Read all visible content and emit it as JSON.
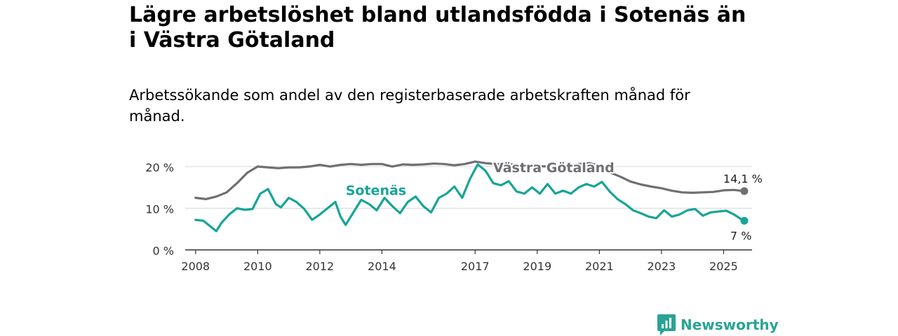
{
  "header": {
    "title": "Lägre arbetslöshet bland utlandsfödda i Sotenäs än i Västra Götaland",
    "subtitle": "Arbetssökande som andel av den registerbaserade arbetskraften månad för månad."
  },
  "brand": {
    "name": "Newsworthy",
    "icon": "newsworthy-logo-icon",
    "color": "#2aa394"
  },
  "chart_data": {
    "type": "line",
    "title": "",
    "xlabel": "",
    "ylabel": "",
    "ylim": [
      0,
      22
    ],
    "xlim": [
      "2007-09",
      "2025-12"
    ],
    "y_ticks": [
      {
        "value": 0,
        "label": "0 %"
      },
      {
        "value": 10,
        "label": "10 %"
      },
      {
        "value": 20,
        "label": "20 %"
      }
    ],
    "x_ticks": [
      {
        "date": "2008-01",
        "label": "2008"
      },
      {
        "date": "2010-01",
        "label": "2010"
      },
      {
        "date": "2012-01",
        "label": "2012"
      },
      {
        "date": "2014-01",
        "label": "2014"
      },
      {
        "date": "2017-01",
        "label": "2017"
      },
      {
        "date": "2019-01",
        "label": "2019"
      },
      {
        "date": "2021-01",
        "label": "2021"
      },
      {
        "date": "2023-01",
        "label": "2023"
      },
      {
        "date": "2025-01",
        "label": "2025"
      }
    ],
    "grid": true,
    "series": [
      {
        "name": "Västra Götaland",
        "color": "#6f6f74",
        "end_label": "14,1 %",
        "points": [
          [
            "2008-01",
            12.5
          ],
          [
            "2008-05",
            12.2
          ],
          [
            "2008-09",
            12.8
          ],
          [
            "2009-01",
            13.8
          ],
          [
            "2009-05",
            16.0
          ],
          [
            "2009-09",
            18.5
          ],
          [
            "2010-01",
            20.0
          ],
          [
            "2010-05",
            19.8
          ],
          [
            "2010-09",
            19.6
          ],
          [
            "2011-01",
            19.8
          ],
          [
            "2011-05",
            19.8
          ],
          [
            "2011-09",
            20.0
          ],
          [
            "2012-01",
            20.4
          ],
          [
            "2012-05",
            20.0
          ],
          [
            "2012-09",
            20.4
          ],
          [
            "2013-01",
            20.6
          ],
          [
            "2013-05",
            20.4
          ],
          [
            "2013-09",
            20.6
          ],
          [
            "2014-01",
            20.6
          ],
          [
            "2014-05",
            20.0
          ],
          [
            "2014-09",
            20.5
          ],
          [
            "2015-01",
            20.4
          ],
          [
            "2015-05",
            20.5
          ],
          [
            "2015-09",
            20.7
          ],
          [
            "2016-01",
            20.6
          ],
          [
            "2016-05",
            20.3
          ],
          [
            "2016-09",
            20.6
          ],
          [
            "2017-01",
            21.2
          ],
          [
            "2017-05",
            20.8
          ],
          [
            "2017-09",
            20.6
          ],
          [
            "2018-01",
            20.6
          ],
          [
            "2018-05",
            20.4
          ],
          [
            "2018-09",
            20.3
          ],
          [
            "2019-01",
            20.1
          ],
          [
            "2019-05",
            20.0
          ],
          [
            "2019-09",
            19.8
          ],
          [
            "2020-01",
            20.2
          ],
          [
            "2020-05",
            20.6
          ],
          [
            "2020-09",
            20.8
          ],
          [
            "2021-01",
            20.2
          ],
          [
            "2021-05",
            18.6
          ],
          [
            "2021-09",
            17.6
          ],
          [
            "2022-01",
            16.4
          ],
          [
            "2022-05",
            15.7
          ],
          [
            "2022-09",
            15.2
          ],
          [
            "2023-01",
            14.8
          ],
          [
            "2023-05",
            14.2
          ],
          [
            "2023-09",
            13.8
          ],
          [
            "2024-01",
            13.7
          ],
          [
            "2024-05",
            13.8
          ],
          [
            "2024-09",
            13.9
          ],
          [
            "2025-01",
            14.3
          ],
          [
            "2025-05",
            14.4
          ],
          [
            "2025-09",
            14.1
          ]
        ]
      },
      {
        "name": "Sotenäs",
        "color": "#16a596",
        "end_label": "7 %",
        "points": [
          [
            "2008-01",
            7.2
          ],
          [
            "2008-04",
            7.0
          ],
          [
            "2008-07",
            5.5
          ],
          [
            "2008-09",
            4.5
          ],
          [
            "2008-11",
            6.5
          ],
          [
            "2009-02",
            8.5
          ],
          [
            "2009-05",
            10.0
          ],
          [
            "2009-08",
            9.6
          ],
          [
            "2009-11",
            9.8
          ],
          [
            "2010-02",
            13.5
          ],
          [
            "2010-05",
            14.6
          ],
          [
            "2010-08",
            11.0
          ],
          [
            "2010-10",
            10.2
          ],
          [
            "2011-01",
            12.5
          ],
          [
            "2011-04",
            11.5
          ],
          [
            "2011-07",
            9.8
          ],
          [
            "2011-10",
            7.2
          ],
          [
            "2012-01",
            8.5
          ],
          [
            "2012-04",
            10.0
          ],
          [
            "2012-07",
            11.5
          ],
          [
            "2012-09",
            8.0
          ],
          [
            "2012-11",
            6.0
          ],
          [
            "2013-02",
            9.0
          ],
          [
            "2013-05",
            12.0
          ],
          [
            "2013-08",
            11.0
          ],
          [
            "2013-11",
            9.5
          ],
          [
            "2014-02",
            12.5
          ],
          [
            "2014-05",
            10.5
          ],
          [
            "2014-08",
            8.8
          ],
          [
            "2014-11",
            11.5
          ],
          [
            "2015-02",
            12.8
          ],
          [
            "2015-05",
            10.5
          ],
          [
            "2015-08",
            9.0
          ],
          [
            "2015-11",
            12.5
          ],
          [
            "2016-02",
            13.5
          ],
          [
            "2016-05",
            15.2
          ],
          [
            "2016-08",
            12.5
          ],
          [
            "2016-11",
            17.0
          ],
          [
            "2017-02",
            20.5
          ],
          [
            "2017-05",
            19.0
          ],
          [
            "2017-08",
            16.0
          ],
          [
            "2017-11",
            15.5
          ],
          [
            "2018-02",
            16.5
          ],
          [
            "2018-05",
            14.0
          ],
          [
            "2018-08",
            13.5
          ],
          [
            "2018-11",
            15.0
          ],
          [
            "2019-02",
            13.5
          ],
          [
            "2019-05",
            15.8
          ],
          [
            "2019-08",
            13.5
          ],
          [
            "2019-11",
            14.2
          ],
          [
            "2020-02",
            13.5
          ],
          [
            "2020-05",
            15.0
          ],
          [
            "2020-08",
            15.8
          ],
          [
            "2020-11",
            15.2
          ],
          [
            "2021-02",
            16.3
          ],
          [
            "2021-05",
            14.0
          ],
          [
            "2021-08",
            12.2
          ],
          [
            "2021-11",
            11.0
          ],
          [
            "2022-02",
            9.5
          ],
          [
            "2022-05",
            8.8
          ],
          [
            "2022-08",
            8.0
          ],
          [
            "2022-11",
            7.6
          ],
          [
            "2023-02",
            9.5
          ],
          [
            "2023-05",
            8.0
          ],
          [
            "2023-08",
            8.5
          ],
          [
            "2023-11",
            9.5
          ],
          [
            "2024-02",
            9.8
          ],
          [
            "2024-05",
            8.2
          ],
          [
            "2024-08",
            9.0
          ],
          [
            "2024-11",
            9.2
          ],
          [
            "2025-02",
            9.4
          ],
          [
            "2025-05",
            8.5
          ],
          [
            "2025-08",
            7.3
          ],
          [
            "2025-09",
            7.0
          ]
        ]
      }
    ],
    "annotations": [
      {
        "text": "Västra Götaland",
        "series": "Västra Götaland",
        "date": "2017-08",
        "value": 18.6,
        "color": "#6f6f74"
      },
      {
        "text": "Sotenäs",
        "series": "Sotenäs",
        "date": "2012-11",
        "value": 13.2,
        "color": "#16a596"
      }
    ]
  }
}
